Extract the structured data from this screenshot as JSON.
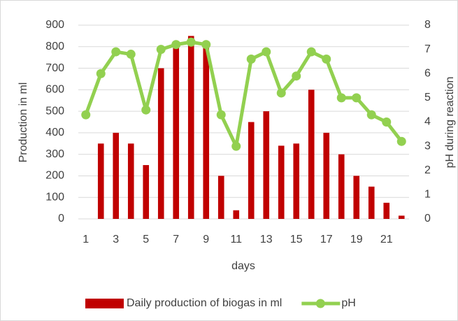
{
  "chart_data": {
    "type": "bar_line",
    "categories": [
      1,
      null,
      3,
      null,
      5,
      null,
      7,
      null,
      9,
      null,
      11,
      null,
      13,
      null,
      15,
      null,
      17,
      null,
      19,
      null,
      21,
      null
    ],
    "series": [
      {
        "name": "Daily production of biogas  in ml",
        "type": "bar",
        "color": "#c00000",
        "values": [
          0,
          350,
          400,
          350,
          250,
          700,
          800,
          850,
          800,
          200,
          40,
          450,
          500,
          340,
          350,
          600,
          400,
          300,
          200,
          150,
          75,
          15
        ]
      },
      {
        "name": "pH",
        "type": "line",
        "axis": "y2",
        "color": "#92d050",
        "values": [
          4.3,
          6.0,
          6.9,
          6.8,
          4.5,
          7.0,
          7.2,
          7.3,
          7.2,
          4.3,
          3.0,
          6.6,
          6.9,
          5.2,
          5.9,
          6.9,
          6.6,
          5.0,
          5.0,
          4.3,
          4.0,
          3.2
        ]
      }
    ],
    "xlabel": "days",
    "ylabel": "Production in ml",
    "y2label": "pH during reaction",
    "ylim": [
      0,
      900
    ],
    "yticks": [
      0,
      100,
      200,
      300,
      400,
      500,
      600,
      700,
      800,
      900
    ],
    "y2lim": [
      0,
      8
    ],
    "y2ticks": [
      0,
      1,
      2,
      3,
      4,
      5,
      6,
      7,
      8
    ],
    "grid": true,
    "legend": "bottom"
  }
}
